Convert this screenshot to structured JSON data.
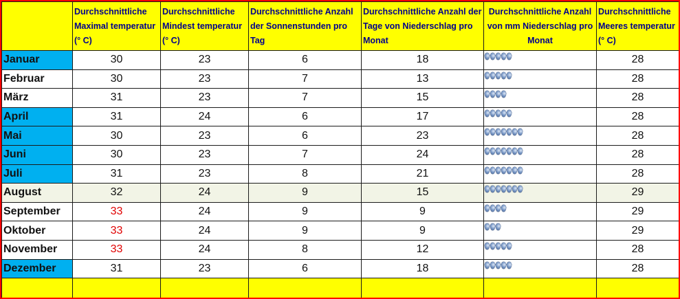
{
  "headers": [
    "",
    "Durchschnittliche Maximal temperatur (° C)",
    "Durchschnittliche Mindest temperatur (° C)",
    "Durchschnittliche Anzahl der Sonnenstunden pro Tag",
    "Durchschnittliche Anzahl der Tage von Niederschlag pro Monat",
    "Durchschnittliche Anzahl von mm Niederschlag pro Monat",
    "Durchschnittliche Meeres temperatur (° C)"
  ],
  "rows": [
    {
      "month": "Januar",
      "max": "30",
      "min": "23",
      "sun": "6",
      "rain_days": "18",
      "drops": 5,
      "sea": "28"
    },
    {
      "month": "Februar",
      "max": "30",
      "min": "23",
      "sun": "7",
      "rain_days": "13",
      "drops": 5,
      "sea": "28"
    },
    {
      "month": "März",
      "max": "31",
      "min": "23",
      "sun": "7",
      "rain_days": "15",
      "drops": 4,
      "sea": "28"
    },
    {
      "month": "April",
      "max": "31",
      "min": "24",
      "sun": "6",
      "rain_days": "17",
      "drops": 5,
      "sea": "28"
    },
    {
      "month": "Mai",
      "max": "30",
      "min": "23",
      "sun": "6",
      "rain_days": "23",
      "drops": 7,
      "sea": "28"
    },
    {
      "month": "Juni",
      "max": "30",
      "min": "23",
      "sun": "7",
      "rain_days": "24",
      "drops": 7,
      "sea": "28"
    },
    {
      "month": "Juli",
      "max": "31",
      "min": "23",
      "sun": "8",
      "rain_days": "21",
      "drops": 7,
      "sea": "28"
    },
    {
      "month": "August",
      "max": "32",
      "min": "24",
      "sun": "9",
      "rain_days": "15",
      "drops": 7,
      "sea": "29"
    },
    {
      "month": "September",
      "max": "33",
      "min": "24",
      "sun": "9",
      "rain_days": "9",
      "drops": 4,
      "sea": "29"
    },
    {
      "month": "Oktober",
      "max": "33",
      "min": "24",
      "sun": "9",
      "rain_days": "9",
      "drops": 3,
      "sea": "29"
    },
    {
      "month": "November",
      "max": "33",
      "min": "24",
      "sun": "8",
      "rain_days": "12",
      "drops": 5,
      "sea": "28"
    },
    {
      "month": "Dezember",
      "max": "31",
      "min": "23",
      "sun": "6",
      "rain_days": "18",
      "drops": 5,
      "sea": "28"
    }
  ],
  "highlight": {
    "hot_values": [
      "33"
    ],
    "hot_color": "#e00000"
  },
  "row_shading": [
    "blue",
    "white",
    "white",
    "blue",
    "blue",
    "blue",
    "blue",
    "cream",
    "white",
    "white",
    "white",
    "blue"
  ],
  "colors": {
    "header_bg": "#ffff00",
    "header_text": "#00008b",
    "border": "#ff0000",
    "month_blue": "#00b0f0",
    "stripe": "#f2f4e6"
  },
  "icons": {
    "precipitation": "raindrop-icon"
  }
}
